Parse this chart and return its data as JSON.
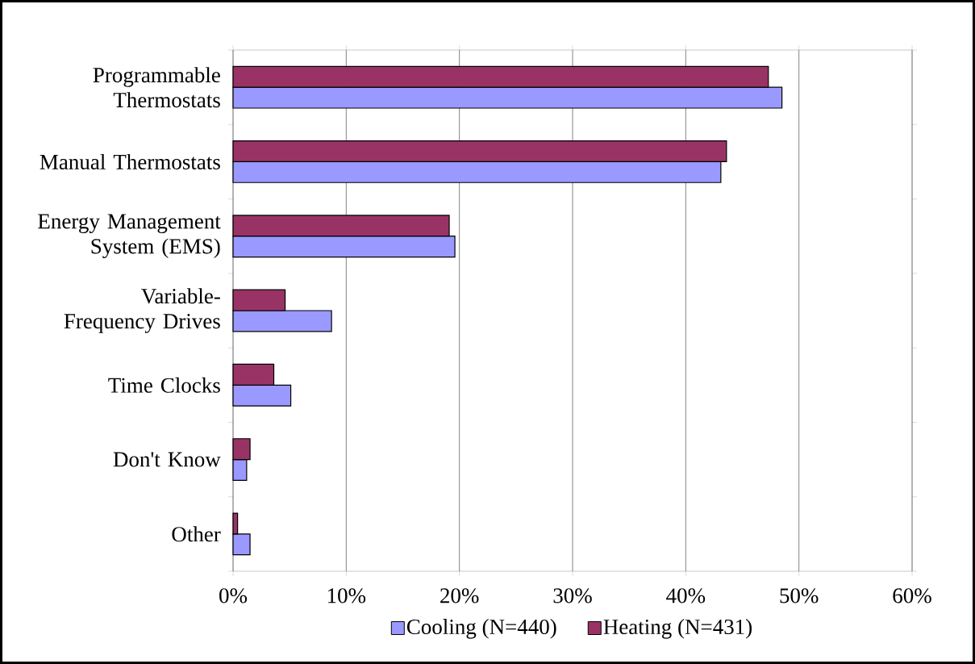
{
  "chart_data": {
    "type": "bar",
    "orientation": "horizontal",
    "categories": [
      "Programmable Thermostats",
      "Manual Thermostats",
      "Energy Management System (EMS)",
      "Variable-Frequency Drives",
      "Time Clocks",
      "Don't Know",
      "Other"
    ],
    "series": [
      {
        "name": "Cooling (N=440)",
        "color": "#9999ff",
        "values": [
          48.5,
          43.1,
          19.6,
          8.7,
          5.1,
          1.2,
          1.5
        ]
      },
      {
        "name": "Heating (N=431)",
        "color": "#993366",
        "values": [
          47.3,
          43.6,
          19.1,
          4.6,
          3.6,
          1.5,
          0.4
        ]
      }
    ],
    "xlim": [
      0,
      60
    ],
    "xticks": [
      {
        "value": 0,
        "label": "0%"
      },
      {
        "value": 10,
        "label": "10%"
      },
      {
        "value": 20,
        "label": "20%"
      },
      {
        "value": 30,
        "label": "30%"
      },
      {
        "value": 40,
        "label": "40%"
      },
      {
        "value": 50,
        "label": "50%"
      },
      {
        "value": 60,
        "label": "60%"
      }
    ],
    "grid": "x",
    "legend": "bottom"
  }
}
